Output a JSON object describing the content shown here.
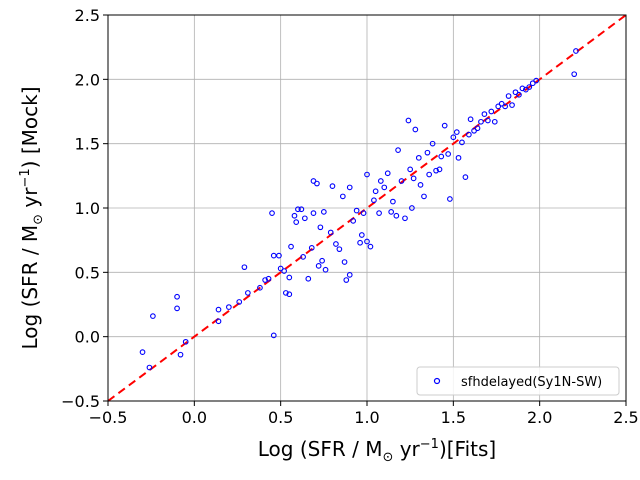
{
  "chart_data": {
    "type": "scatter",
    "xlabel_parts": [
      "Log (SFR / M",
      "⊙",
      " yr",
      "−1",
      ")[Fits]"
    ],
    "ylabel_parts": [
      "Log (SFR / M",
      "⊙",
      " yr",
      "−1",
      ") [Mock]"
    ],
    "xlim": [
      -0.5,
      2.5
    ],
    "ylim": [
      -0.5,
      2.5
    ],
    "xticks": [
      "−0.5",
      "0.0",
      "0.5",
      "1.0",
      "1.5",
      "2.0",
      "2.5"
    ],
    "yticks": [
      "−0.5",
      "0.0",
      "0.5",
      "1.0",
      "1.5",
      "2.0",
      "2.5"
    ],
    "grid": true,
    "legend": {
      "position": "lower-right",
      "entries": [
        "sfhdelayed(Sy1N-SW)"
      ]
    },
    "reference_line": {
      "type": "identity",
      "color": "#ff0000",
      "style": "dashed"
    },
    "series": [
      {
        "name": "sfhdelayed(Sy1N-SW)",
        "marker": "open-circle",
        "color": "#0000ff",
        "points": [
          [
            -0.3,
            -0.12
          ],
          [
            -0.26,
            -0.24
          ],
          [
            -0.24,
            0.16
          ],
          [
            -0.1,
            0.31
          ],
          [
            -0.1,
            0.22
          ],
          [
            -0.08,
            -0.14
          ],
          [
            -0.05,
            -0.04
          ],
          [
            0.14,
            0.21
          ],
          [
            0.14,
            0.12
          ],
          [
            0.2,
            0.23
          ],
          [
            0.26,
            0.27
          ],
          [
            0.29,
            0.54
          ],
          [
            0.31,
            0.34
          ],
          [
            0.38,
            0.38
          ],
          [
            0.41,
            0.44
          ],
          [
            0.43,
            0.45
          ],
          [
            0.45,
            0.96
          ],
          [
            0.46,
            0.01
          ],
          [
            0.46,
            0.63
          ],
          [
            0.49,
            0.63
          ],
          [
            0.5,
            0.53
          ],
          [
            0.52,
            0.51
          ],
          [
            0.53,
            0.34
          ],
          [
            0.55,
            0.33
          ],
          [
            0.55,
            0.46
          ],
          [
            0.56,
            0.7
          ],
          [
            0.58,
            0.94
          ],
          [
            0.59,
            0.89
          ],
          [
            0.6,
            0.99
          ],
          [
            0.62,
            0.99
          ],
          [
            0.63,
            0.62
          ],
          [
            0.64,
            0.92
          ],
          [
            0.66,
            0.45
          ],
          [
            0.68,
            0.69
          ],
          [
            0.69,
            0.96
          ],
          [
            0.69,
            1.21
          ],
          [
            0.71,
            1.19
          ],
          [
            0.72,
            0.55
          ],
          [
            0.73,
            0.85
          ],
          [
            0.74,
            0.59
          ],
          [
            0.75,
            0.97
          ],
          [
            0.76,
            0.52
          ],
          [
            0.79,
            0.81
          ],
          [
            0.8,
            1.17
          ],
          [
            0.82,
            0.72
          ],
          [
            0.84,
            0.68
          ],
          [
            0.86,
            1.09
          ],
          [
            0.87,
            0.58
          ],
          [
            0.88,
            0.44
          ],
          [
            0.9,
            1.16
          ],
          [
            0.9,
            0.48
          ],
          [
            0.92,
            0.9
          ],
          [
            0.94,
            0.98
          ],
          [
            0.96,
            0.73
          ],
          [
            0.97,
            0.79
          ],
          [
            0.98,
            0.96
          ],
          [
            1.0,
            1.26
          ],
          [
            1.0,
            0.74
          ],
          [
            1.02,
            0.7
          ],
          [
            1.04,
            1.06
          ],
          [
            1.05,
            1.13
          ],
          [
            1.07,
            0.96
          ],
          [
            1.08,
            1.21
          ],
          [
            1.1,
            1.16
          ],
          [
            1.12,
            1.27
          ],
          [
            1.14,
            0.97
          ],
          [
            1.15,
            1.05
          ],
          [
            1.17,
            0.94
          ],
          [
            1.18,
            1.45
          ],
          [
            1.2,
            1.21
          ],
          [
            1.22,
            0.92
          ],
          [
            1.24,
            1.68
          ],
          [
            1.25,
            1.3
          ],
          [
            1.26,
            1.0
          ],
          [
            1.27,
            1.23
          ],
          [
            1.28,
            1.61
          ],
          [
            1.3,
            1.39
          ],
          [
            1.31,
            1.18
          ],
          [
            1.33,
            1.09
          ],
          [
            1.35,
            1.43
          ],
          [
            1.36,
            1.26
          ],
          [
            1.38,
            1.5
          ],
          [
            1.4,
            1.29
          ],
          [
            1.42,
            1.3
          ],
          [
            1.43,
            1.4
          ],
          [
            1.45,
            1.64
          ],
          [
            1.47,
            1.42
          ],
          [
            1.48,
            1.07
          ],
          [
            1.5,
            1.55
          ],
          [
            1.52,
            1.59
          ],
          [
            1.53,
            1.39
          ],
          [
            1.55,
            1.51
          ],
          [
            1.57,
            1.24
          ],
          [
            1.59,
            1.57
          ],
          [
            1.6,
            1.69
          ],
          [
            1.62,
            1.6
          ],
          [
            1.64,
            1.62
          ],
          [
            1.66,
            1.67
          ],
          [
            1.68,
            1.73
          ],
          [
            1.7,
            1.68
          ],
          [
            1.72,
            1.75
          ],
          [
            1.74,
            1.67
          ],
          [
            1.76,
            1.79
          ],
          [
            1.78,
            1.81
          ],
          [
            1.8,
            1.79
          ],
          [
            1.82,
            1.87
          ],
          [
            1.84,
            1.8
          ],
          [
            1.86,
            1.9
          ],
          [
            1.88,
            1.88
          ],
          [
            1.9,
            1.93
          ],
          [
            1.92,
            1.92
          ],
          [
            1.94,
            1.94
          ],
          [
            1.96,
            1.97
          ],
          [
            1.98,
            1.99
          ],
          [
            2.2,
            2.04
          ],
          [
            2.21,
            2.22
          ]
        ]
      }
    ]
  }
}
